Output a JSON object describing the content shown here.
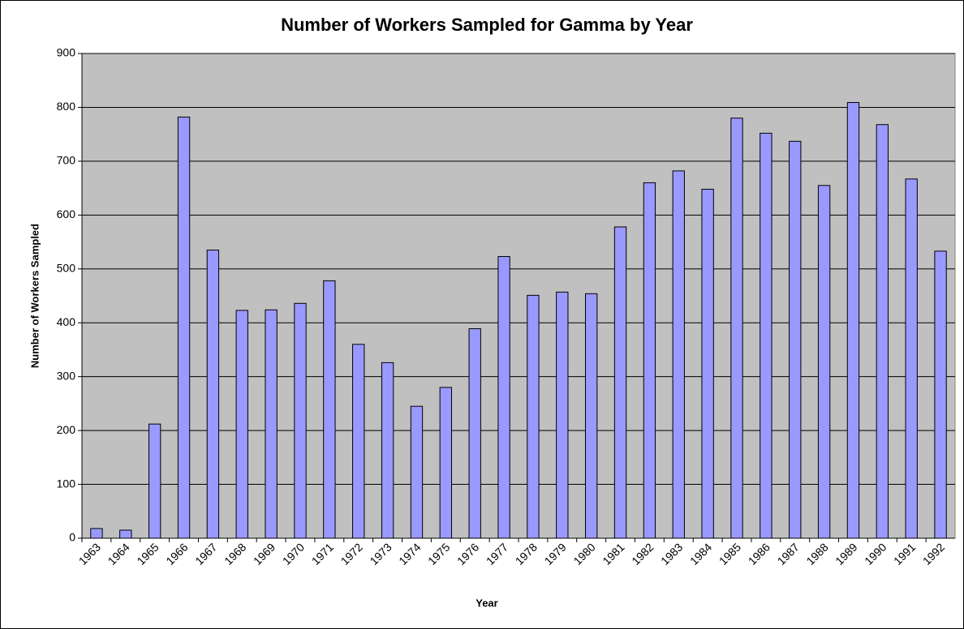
{
  "chart_data": {
    "type": "bar",
    "title": "Number of Workers Sampled for Gamma by Year",
    "x_label": "Year",
    "y_label": "Number of Workers Sampled",
    "categories": [
      "1963",
      "1964",
      "1965",
      "1966",
      "1967",
      "1968",
      "1969",
      "1970",
      "1971",
      "1972",
      "1973",
      "1974",
      "1975",
      "1976",
      "1977",
      "1978",
      "1979",
      "1980",
      "1981",
      "1982",
      "1983",
      "1984",
      "1985",
      "1986",
      "1987",
      "1988",
      "1989",
      "1990",
      "1991",
      "1992"
    ],
    "values": [
      18,
      15,
      212,
      782,
      535,
      423,
      424,
      436,
      478,
      360,
      326,
      245,
      280,
      389,
      523,
      451,
      457,
      454,
      578,
      660,
      682,
      648,
      780,
      752,
      737,
      655,
      809,
      768,
      667,
      533
    ],
    "color": "#9999ff",
    "ylim": [
      0,
      900
    ],
    "yticks": [
      0,
      100,
      200,
      300,
      400,
      500,
      600,
      700,
      800,
      900
    ],
    "grid": true
  }
}
